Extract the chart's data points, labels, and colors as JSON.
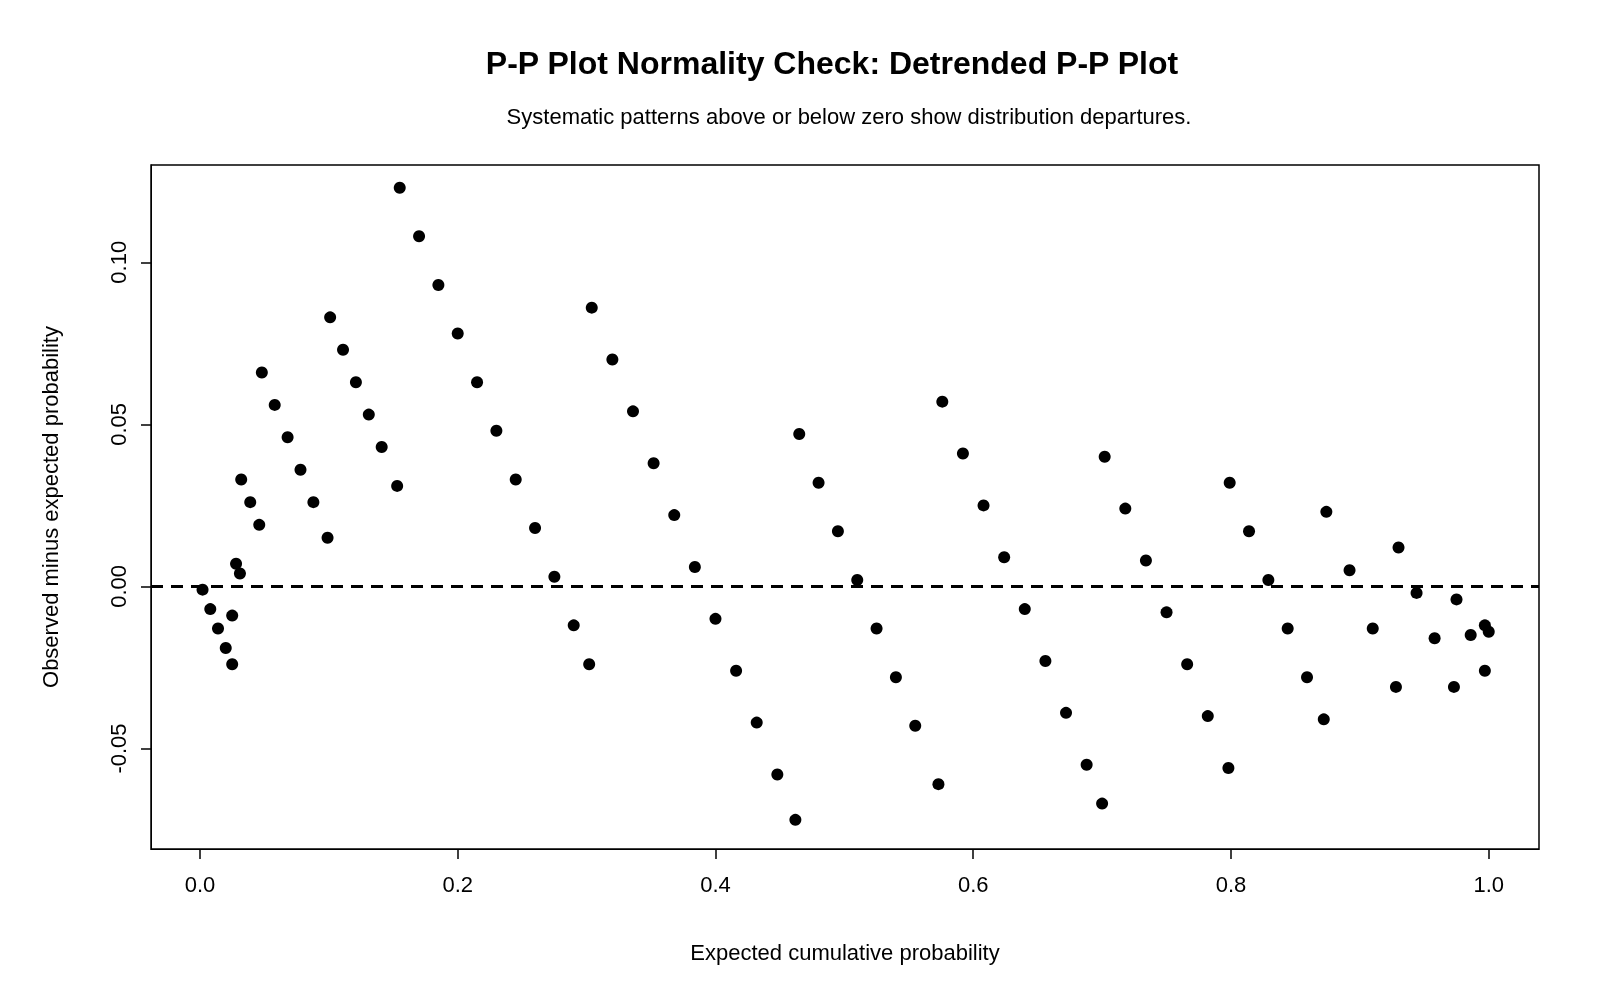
{
  "chart_data": {
    "type": "scatter",
    "title": "P-P Plot Normality Check: Detrended P-P Plot",
    "subtitle": "Systematic patterns above or below zero show distribution departures.",
    "xlabel": "Expected cumulative probability",
    "ylabel": "Observed minus expected probability",
    "x": [
      0.002,
      0.008,
      0.014,
      0.02,
      0.025,
      0.025,
      0.028,
      0.031,
      0.032,
      0.039,
      0.046,
      0.048,
      0.058,
      0.068,
      0.078,
      0.088,
      0.099,
      0.101,
      0.111,
      0.121,
      0.131,
      0.141,
      0.153,
      0.155,
      0.17,
      0.185,
      0.2,
      0.215,
      0.23,
      0.245,
      0.26,
      0.275,
      0.29,
      0.302,
      0.304,
      0.32,
      0.336,
      0.352,
      0.368,
      0.384,
      0.4,
      0.416,
      0.432,
      0.448,
      0.462,
      0.465,
      0.48,
      0.495,
      0.51,
      0.525,
      0.54,
      0.555,
      0.573,
      0.576,
      0.592,
      0.608,
      0.624,
      0.64,
      0.656,
      0.672,
      0.688,
      0.7,
      0.702,
      0.718,
      0.734,
      0.75,
      0.766,
      0.782,
      0.798,
      0.799,
      0.814,
      0.829,
      0.844,
      0.859,
      0.872,
      0.874,
      0.892,
      0.91,
      0.928,
      0.93,
      0.944,
      0.958,
      0.973,
      0.975,
      0.986,
      0.997,
      0.997,
      1.0
    ],
    "values": [
      -0.001,
      -0.007,
      -0.013,
      -0.019,
      -0.024,
      -0.009,
      0.007,
      0.004,
      0.033,
      0.026,
      0.019,
      0.066,
      0.056,
      0.046,
      0.036,
      0.026,
      0.015,
      0.083,
      0.073,
      0.063,
      0.053,
      0.043,
      0.031,
      0.123,
      0.108,
      0.093,
      0.078,
      0.063,
      0.048,
      0.033,
      0.018,
      0.003,
      -0.012,
      -0.024,
      0.086,
      0.07,
      0.054,
      0.038,
      0.022,
      0.006,
      -0.01,
      -0.026,
      -0.042,
      -0.058,
      -0.072,
      0.047,
      0.032,
      0.017,
      0.002,
      -0.013,
      -0.028,
      -0.043,
      -0.061,
      0.057,
      0.041,
      0.025,
      0.009,
      -0.007,
      -0.023,
      -0.039,
      -0.055,
      -0.067,
      0.04,
      0.024,
      0.008,
      -0.008,
      -0.024,
      -0.04,
      -0.056,
      0.032,
      0.017,
      0.002,
      -0.013,
      -0.028,
      -0.041,
      0.023,
      0.005,
      -0.013,
      -0.031,
      0.012,
      -0.002,
      -0.016,
      -0.031,
      -0.004,
      -0.015,
      -0.026,
      -0.012,
      -0.014
    ],
    "color": "#000000",
    "marker": "circle",
    "xlim": [
      -0.038,
      1.039
    ],
    "ylim": [
      -0.081,
      0.13
    ],
    "xticks": [
      {
        "value": 0,
        "label": "0.0"
      },
      {
        "value": 0.2,
        "label": "0.2"
      },
      {
        "value": 0.4,
        "label": "0.4"
      },
      {
        "value": 0.6,
        "label": "0.6"
      },
      {
        "value": 0.8,
        "label": "0.8"
      },
      {
        "value": 1,
        "label": "1.0"
      }
    ],
    "yticks": [
      {
        "value": -0.05,
        "label": "-0.05"
      },
      {
        "value": 0,
        "label": "0.00"
      },
      {
        "value": 0.05,
        "label": "0.05"
      },
      {
        "value": 0.1,
        "label": "0.10"
      }
    ],
    "ref_lines": [
      {
        "axis": "y",
        "value": 0,
        "color": "#000000",
        "line_style": "dashed"
      }
    ]
  }
}
